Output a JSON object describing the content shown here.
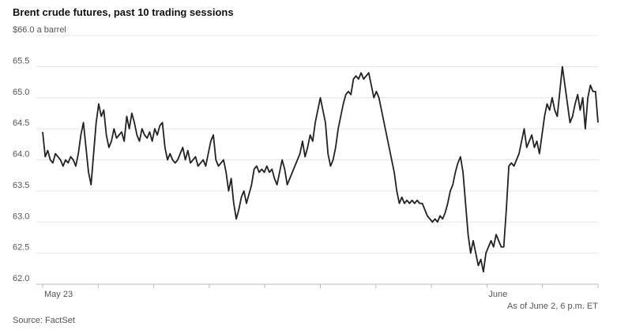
{
  "chart_data": {
    "type": "line",
    "title": "Brent crude futures, past 10 trading sessions",
    "ylabel": "",
    "ylim": [
      62.0,
      66.0
    ],
    "y_ticks": [
      {
        "value": 66.0,
        "label": "$66.0 a barrel"
      },
      {
        "value": 65.5,
        "label": "65.5"
      },
      {
        "value": 65.0,
        "label": "65.0"
      },
      {
        "value": 64.5,
        "label": "64.5"
      },
      {
        "value": 64.0,
        "label": "64.0"
      },
      {
        "value": 63.5,
        "label": "63.5"
      },
      {
        "value": 63.0,
        "label": "63.0"
      },
      {
        "value": 62.5,
        "label": "62.5"
      },
      {
        "value": 62.0,
        "label": "62.0"
      }
    ],
    "sessions": 10,
    "x_labels": [
      {
        "session": 0,
        "label": "May 23"
      },
      {
        "session": 8,
        "label": "June"
      }
    ],
    "grid": true,
    "note": "As of June 2, 6 p.m. ET",
    "source": "Source: FactSet",
    "series": [
      {
        "values": [
          64.45,
          64.05,
          64.15,
          64.0,
          63.95,
          64.1,
          64.05,
          64.0,
          63.9,
          64.0,
          63.95,
          64.05,
          64.0,
          63.9,
          64.1,
          64.4,
          64.6,
          64.2,
          63.8,
          63.6,
          64.1,
          64.6,
          64.9,
          64.7,
          64.8,
          64.4,
          64.2,
          64.3,
          64.5,
          64.35,
          64.4,
          64.45,
          64.3,
          64.7,
          64.5,
          64.75,
          64.6,
          64.4,
          64.3,
          64.5,
          64.4,
          64.35,
          64.45,
          64.3,
          64.5,
          64.4,
          64.55,
          64.6,
          64.2,
          64.0,
          64.1,
          64.0,
          63.95,
          64.0,
          64.1,
          64.2,
          64.0,
          64.15,
          63.95,
          64.0,
          64.05,
          63.9,
          63.95,
          64.0,
          63.9,
          64.1,
          64.3,
          64.4,
          64.0,
          63.9,
          63.95,
          64.0,
          63.8,
          63.5,
          63.7,
          63.3,
          63.05,
          63.2,
          63.4,
          63.5,
          63.3,
          63.45,
          63.6,
          63.85,
          63.9,
          63.8,
          63.85,
          63.8,
          63.9,
          63.8,
          63.85,
          63.7,
          63.6,
          63.8,
          64.0,
          63.85,
          63.6,
          63.7,
          63.8,
          63.9,
          64.0,
          64.1,
          64.3,
          64.05,
          64.2,
          64.4,
          64.3,
          64.6,
          64.8,
          65.0,
          64.8,
          64.6,
          64.1,
          63.9,
          64.0,
          64.2,
          64.5,
          64.7,
          64.9,
          65.05,
          65.1,
          65.05,
          65.3,
          65.35,
          65.3,
          65.4,
          65.3,
          65.35,
          65.4,
          65.2,
          65.0,
          65.1,
          65.0,
          64.8,
          64.6,
          64.4,
          64.2,
          64.0,
          63.8,
          63.5,
          63.3,
          63.4,
          63.3,
          63.35,
          63.3,
          63.35,
          63.3,
          63.35,
          63.3,
          63.3,
          63.2,
          63.1,
          63.05,
          63.0,
          63.05,
          63.0,
          63.1,
          63.05,
          63.15,
          63.3,
          63.5,
          63.6,
          63.8,
          63.95,
          64.05,
          63.8,
          63.3,
          62.8,
          62.5,
          62.7,
          62.5,
          62.3,
          62.4,
          62.2,
          62.5,
          62.6,
          62.7,
          62.6,
          62.8,
          62.7,
          62.6,
          62.6,
          63.2,
          63.9,
          63.95,
          63.9,
          64.0,
          64.1,
          64.3,
          64.5,
          64.2,
          64.3,
          64.4,
          64.2,
          64.3,
          64.1,
          64.4,
          64.7,
          64.9,
          64.8,
          65.0,
          64.8,
          64.7,
          65.1,
          65.5,
          65.2,
          64.9,
          64.6,
          64.7,
          64.9,
          65.05,
          64.8,
          65.0,
          64.5,
          65.0,
          65.2,
          65.1,
          65.1,
          64.6
        ]
      }
    ]
  }
}
